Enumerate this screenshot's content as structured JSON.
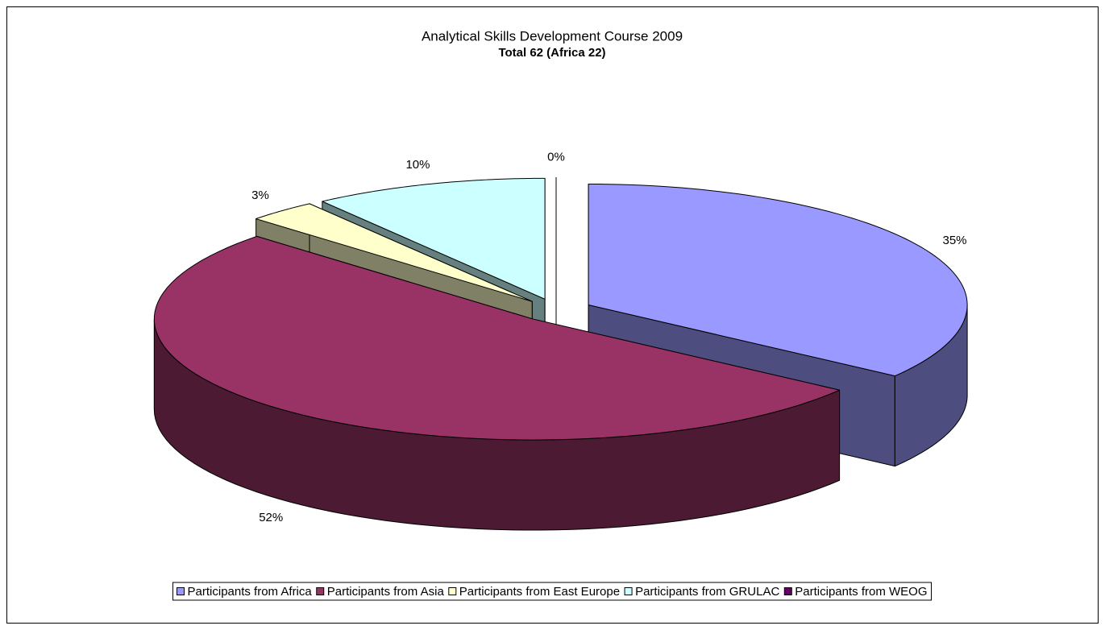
{
  "chart_data": {
    "type": "pie",
    "title": "Analytical Skills Development Course 2009",
    "subtitle": "Total 62 (Africa 22)",
    "categories": [
      "Participants from Africa",
      "Participants from Asia",
      "Participants from East Europe",
      "Participants from GRULAC",
      "Participants from WEOG"
    ],
    "values": [
      35,
      52,
      3,
      10,
      0
    ],
    "value_labels": [
      "35%",
      "52%",
      "3%",
      "10%",
      "0%"
    ],
    "colors": [
      "#9999ff",
      "#993366",
      "#ffffcc",
      "#ccffff",
      "#660066"
    ],
    "legend": "bottom"
  }
}
